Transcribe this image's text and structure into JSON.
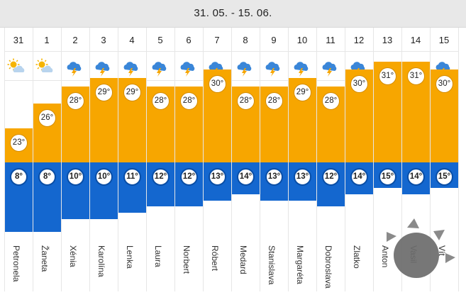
{
  "header": {
    "title": "31. 05. - 15. 06."
  },
  "colors": {
    "high_bar": "#f7a600",
    "low_bar": "#1467cf",
    "header_bg": "#e8e8e8"
  },
  "days": [
    {
      "day": "31",
      "icon": "sun-cloud-icon",
      "high": "23°",
      "low": "8°",
      "high_value": 23,
      "low_value": 8,
      "name": "Petronela"
    },
    {
      "day": "1",
      "icon": "sun-cloud-icon",
      "high": "26°",
      "low": "8°",
      "high_value": 26,
      "low_value": 8,
      "name": "Žaneta"
    },
    {
      "day": "2",
      "icon": "thunderstorm-icon",
      "high": "28°",
      "low": "10°",
      "high_value": 28,
      "low_value": 10,
      "name": "Xénia"
    },
    {
      "day": "3",
      "icon": "thunderstorm-icon",
      "high": "29°",
      "low": "10°",
      "high_value": 29,
      "low_value": 10,
      "name": "Karolína"
    },
    {
      "day": "4",
      "icon": "thunderstorm-icon",
      "high": "29°",
      "low": "11°",
      "high_value": 29,
      "low_value": 11,
      "name": "Lenka"
    },
    {
      "day": "5",
      "icon": "thunderstorm-icon",
      "high": "28°",
      "low": "12°",
      "high_value": 28,
      "low_value": 12,
      "name": "Laura"
    },
    {
      "day": "6",
      "icon": "thunderstorm-icon",
      "high": "28°",
      "low": "12°",
      "high_value": 28,
      "low_value": 12,
      "name": "Norbert"
    },
    {
      "day": "7",
      "icon": "thunderstorm-icon",
      "high": "30°",
      "low": "13°",
      "high_value": 30,
      "low_value": 13,
      "name": "Róbert"
    },
    {
      "day": "8",
      "icon": "thunderstorm-icon",
      "high": "28°",
      "low": "14°",
      "high_value": 28,
      "low_value": 14,
      "name": "Medard"
    },
    {
      "day": "9",
      "icon": "thunderstorm-icon",
      "high": "28°",
      "low": "13°",
      "high_value": 28,
      "low_value": 13,
      "name": "Stanislava"
    },
    {
      "day": "10",
      "icon": "thunderstorm-icon",
      "high": "29°",
      "low": "13°",
      "high_value": 29,
      "low_value": 13,
      "name": "Margaréta"
    },
    {
      "day": "11",
      "icon": "thunderstorm-icon",
      "high": "28°",
      "low": "12°",
      "high_value": 28,
      "low_value": 12,
      "name": "Dobroslava"
    },
    {
      "day": "12",
      "icon": "thunderstorm-icon",
      "high": "30°",
      "low": "14°",
      "high_value": 30,
      "low_value": 14,
      "name": "Zlatko"
    },
    {
      "day": "13",
      "icon": "thunderstorm-icon",
      "high": "31°",
      "low": "15°",
      "high_value": 31,
      "low_value": 15,
      "name": "Anton"
    },
    {
      "day": "14",
      "icon": "thunderstorm-icon",
      "high": "31°",
      "low": "14°",
      "high_value": 31,
      "low_value": 14,
      "name": "Vasil"
    },
    {
      "day": "15",
      "icon": "thunderstorm-icon",
      "high": "30°",
      "low": "15°",
      "high_value": 30,
      "low_value": 15,
      "name": "Vít"
    }
  ],
  "sun_widget": {
    "icon": "sun-widget-icon"
  }
}
